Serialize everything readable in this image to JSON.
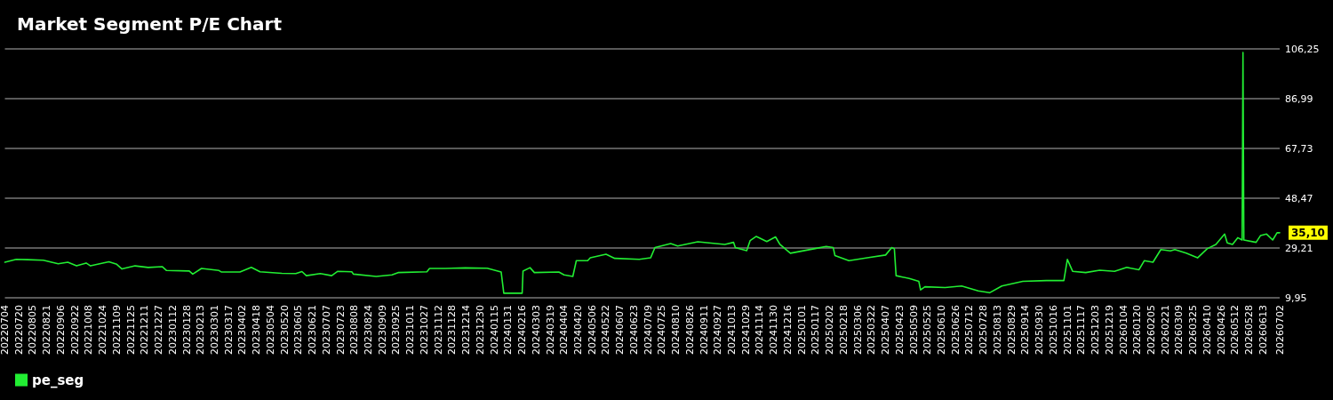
{
  "chart_data": {
    "type": "line",
    "title": "Market Segment P/E Chart",
    "x": [
      "2022-07-04",
      "2022-07-17",
      "2022-07-30",
      "2022-08-17",
      "2022-09-03",
      "2022-09-14",
      "2022-09-24",
      "2022-10-05",
      "2022-10-10",
      "2022-10-31",
      "2022-11-09",
      "2022-11-15",
      "2022-11-30",
      "2022-12-15",
      "2022-12-31",
      "2023-01-05",
      "2023-01-31",
      "2023-02-04",
      "2023-02-14",
      "2023-03-06",
      "2023-03-09",
      "2023-03-30",
      "2023-04-12",
      "2023-04-22",
      "2023-05-17",
      "2023-06-02",
      "2023-06-09",
      "2023-06-14",
      "2023-06-30",
      "2023-07-13",
      "2023-07-20",
      "2023-08-05",
      "2023-08-07",
      "2023-09-02",
      "2023-09-20",
      "2023-09-27",
      "2023-10-30",
      "2023-11-02",
      "2023-11-20",
      "2023-12-13",
      "2024-01-07",
      "2024-01-23",
      "2024-01-26",
      "2024-02-16",
      "2024-02-17",
      "2024-02-25",
      "2024-03-01",
      "2024-03-29",
      "2024-04-04",
      "2024-04-14",
      "2024-04-18",
      "2024-05-01",
      "2024-05-04",
      "2024-05-22",
      "2024-06-01",
      "2024-06-29",
      "2024-07-12",
      "2024-07-17",
      "2024-08-04",
      "2024-08-12",
      "2024-09-04",
      "2024-10-05",
      "2024-10-15",
      "2024-10-17",
      "2024-10-30",
      "2024-11-03",
      "2024-11-10",
      "2024-11-22",
      "2024-12-02",
      "2024-12-07",
      "2024-12-19",
      "2025-01-15",
      "2025-01-29",
      "2025-02-06",
      "2025-02-08",
      "2025-02-24",
      "2025-03-17",
      "2025-04-07",
      "2025-04-14",
      "2025-04-17",
      "2025-04-19",
      "2025-05-04",
      "2025-05-15",
      "2025-05-17",
      "2025-05-22",
      "2025-06-14",
      "2025-07-03",
      "2025-07-22",
      "2025-08-04",
      "2025-08-18",
      "2025-09-11",
      "2025-10-08",
      "2025-10-28",
      "2025-11-01",
      "2025-11-07",
      "2025-11-22",
      "2025-12-08",
      "2025-12-25",
      "2026-01-08",
      "2026-01-22",
      "2026-01-28",
      "2026-02-07",
      "2026-02-16",
      "2026-02-27",
      "2026-03-04",
      "2026-03-17",
      "2026-03-30",
      "2026-04-10",
      "2026-04-20",
      "2026-04-30",
      "2026-05-03",
      "2026-05-09",
      "2026-05-15",
      "2026-05-20",
      "2026-05-21",
      "2026-05-22",
      "2026-06-05",
      "2026-06-10",
      "2026-06-17",
      "2026-06-24",
      "2026-06-29",
      "2026-07-02"
    ],
    "series": [
      {
        "name": "pe_seg",
        "color": "#22ee33",
        "values": [
          23.7,
          24.8,
          24.7,
          24.5,
          23.1,
          23.7,
          22.3,
          23.4,
          22.3,
          23.9,
          22.9,
          21.1,
          22.3,
          21.7,
          22.0,
          20.5,
          20.3,
          19.1,
          21.3,
          20.5,
          19.9,
          19.9,
          21.7,
          20.0,
          19.4,
          19.3,
          20.1,
          18.5,
          19.3,
          18.5,
          20.2,
          20.0,
          19.1,
          18.2,
          18.8,
          19.7,
          20.0,
          21.3,
          21.3,
          21.5,
          21.4,
          19.9,
          11.7,
          11.7,
          20.3,
          21.6,
          19.7,
          19.9,
          18.8,
          18.2,
          24.3,
          24.3,
          25.4,
          26.8,
          25.2,
          24.8,
          25.4,
          29.4,
          30.9,
          30.0,
          31.6,
          30.6,
          31.4,
          29.4,
          28.2,
          32.1,
          33.7,
          31.7,
          33.5,
          30.6,
          27.2,
          28.9,
          29.8,
          29.4,
          26.3,
          24.3,
          25.4,
          26.5,
          29.4,
          28.9,
          18.5,
          17.4,
          16.3,
          13.0,
          14.2,
          13.9,
          14.5,
          12.6,
          11.9,
          14.5,
          16.3,
          16.6,
          16.6,
          24.8,
          20.2,
          19.7,
          20.6,
          20.2,
          21.7,
          20.8,
          24.3,
          23.7,
          28.6,
          28.1,
          28.6,
          27.2,
          25.4,
          28.9,
          30.6,
          34.6,
          31.2,
          30.6,
          33.2,
          32.3,
          104.9,
          32.3,
          31.4,
          34.0,
          34.6,
          32.3,
          35.1,
          35.1
        ]
      }
    ],
    "annotations": [
      {
        "text": "35,10",
        "x": "2026-07-02",
        "y": 35.1
      }
    ],
    "ylim": [
      9.95,
      106.25
    ],
    "yticks": [
      {
        "value": 9.95,
        "label": "9,95"
      },
      {
        "value": 29.21,
        "label": "29,21"
      },
      {
        "value": 48.47,
        "label": "48,47"
      },
      {
        "value": 67.73,
        "label": "67,73"
      },
      {
        "value": 86.99,
        "label": "86,99"
      },
      {
        "value": 106.25,
        "label": "106,25"
      }
    ],
    "xlim": [
      "2022-07-04",
      "2026-07-02"
    ],
    "xticks": [
      {
        "value": "2022-07-04",
        "label": "20220704"
      },
      {
        "value": "2022-07-20",
        "label": "20220720"
      },
      {
        "value": "2022-08-05",
        "label": "20220805"
      },
      {
        "value": "2022-08-21",
        "label": "20220821"
      },
      {
        "value": "2022-09-06",
        "label": "20220906"
      },
      {
        "value": "2022-09-22",
        "label": "20220922"
      },
      {
        "value": "2022-10-08",
        "label": "20221008"
      },
      {
        "value": "2022-10-24",
        "label": "20221024"
      },
      {
        "value": "2022-11-09",
        "label": "20221109"
      },
      {
        "value": "2022-11-25",
        "label": "20221125"
      },
      {
        "value": "2022-12-11",
        "label": "20221211"
      },
      {
        "value": "2022-12-27",
        "label": "20221227"
      },
      {
        "value": "2023-01-12",
        "label": "20230112"
      },
      {
        "value": "2023-01-28",
        "label": "20230128"
      },
      {
        "value": "2023-02-13",
        "label": "20230213"
      },
      {
        "value": "2023-03-01",
        "label": "20230301"
      },
      {
        "value": "2023-03-17",
        "label": "20230317"
      },
      {
        "value": "2023-04-02",
        "label": "20230402"
      },
      {
        "value": "2023-04-18",
        "label": "20230418"
      },
      {
        "value": "2023-05-04",
        "label": "20230504"
      },
      {
        "value": "2023-05-20",
        "label": "20230520"
      },
      {
        "value": "2023-06-05",
        "label": "20230605"
      },
      {
        "value": "2023-06-21",
        "label": "20230621"
      },
      {
        "value": "2023-07-07",
        "label": "20230707"
      },
      {
        "value": "2023-07-23",
        "label": "20230723"
      },
      {
        "value": "2023-08-08",
        "label": "20230808"
      },
      {
        "value": "2023-08-24",
        "label": "20230824"
      },
      {
        "value": "2023-09-09",
        "label": "20230909"
      },
      {
        "value": "2023-09-25",
        "label": "20230925"
      },
      {
        "value": "2023-10-11",
        "label": "20231011"
      },
      {
        "value": "2023-10-27",
        "label": "20231027"
      },
      {
        "value": "2023-11-12",
        "label": "20231112"
      },
      {
        "value": "2023-11-28",
        "label": "20231128"
      },
      {
        "value": "2023-12-14",
        "label": "20231214"
      },
      {
        "value": "2023-12-30",
        "label": "20231230"
      },
      {
        "value": "2024-01-15",
        "label": "20240115"
      },
      {
        "value": "2024-01-31",
        "label": "20240131"
      },
      {
        "value": "2024-02-16",
        "label": "20240216"
      },
      {
        "value": "2024-03-03",
        "label": "20240303"
      },
      {
        "value": "2024-03-19",
        "label": "20240319"
      },
      {
        "value": "2024-04-04",
        "label": "20240404"
      },
      {
        "value": "2024-04-20",
        "label": "20240420"
      },
      {
        "value": "2024-05-06",
        "label": "20240506"
      },
      {
        "value": "2024-05-22",
        "label": "20240522"
      },
      {
        "value": "2024-06-07",
        "label": "20240607"
      },
      {
        "value": "2024-06-23",
        "label": "20240623"
      },
      {
        "value": "2024-07-09",
        "label": "20240709"
      },
      {
        "value": "2024-07-25",
        "label": "20240725"
      },
      {
        "value": "2024-08-10",
        "label": "20240810"
      },
      {
        "value": "2024-08-26",
        "label": "20240826"
      },
      {
        "value": "2024-09-11",
        "label": "20240911"
      },
      {
        "value": "2024-09-27",
        "label": "20240927"
      },
      {
        "value": "2024-10-13",
        "label": "20241013"
      },
      {
        "value": "2024-10-29",
        "label": "20241029"
      },
      {
        "value": "2024-11-14",
        "label": "20241114"
      },
      {
        "value": "2024-11-30",
        "label": "20241130"
      },
      {
        "value": "2024-12-16",
        "label": "20241216"
      },
      {
        "value": "2025-01-01",
        "label": "20250101"
      },
      {
        "value": "2025-01-17",
        "label": "20250117"
      },
      {
        "value": "2025-02-02",
        "label": "20250202"
      },
      {
        "value": "2025-02-18",
        "label": "20250218"
      },
      {
        "value": "2025-03-06",
        "label": "20250306"
      },
      {
        "value": "2025-03-22",
        "label": "20250322"
      },
      {
        "value": "2025-04-07",
        "label": "20250407"
      },
      {
        "value": "2025-04-23",
        "label": "20250423"
      },
      {
        "value": "2025-05-09",
        "label": "20250509"
      },
      {
        "value": "2025-05-25",
        "label": "20250525"
      },
      {
        "value": "2025-06-10",
        "label": "20250610"
      },
      {
        "value": "2025-06-26",
        "label": "20250626"
      },
      {
        "value": "2025-07-12",
        "label": "20250712"
      },
      {
        "value": "2025-07-28",
        "label": "20250728"
      },
      {
        "value": "2025-08-13",
        "label": "20250813"
      },
      {
        "value": "2025-08-29",
        "label": "20250829"
      },
      {
        "value": "2025-09-14",
        "label": "20250914"
      },
      {
        "value": "2025-09-30",
        "label": "20250930"
      },
      {
        "value": "2025-10-16",
        "label": "20251016"
      },
      {
        "value": "2025-11-01",
        "label": "20251101"
      },
      {
        "value": "2025-11-17",
        "label": "20251117"
      },
      {
        "value": "2025-12-03",
        "label": "20251203"
      },
      {
        "value": "2025-12-19",
        "label": "20251219"
      },
      {
        "value": "2026-01-04",
        "label": "20260104"
      },
      {
        "value": "2026-01-20",
        "label": "20260120"
      },
      {
        "value": "2026-02-05",
        "label": "20260205"
      },
      {
        "value": "2026-02-21",
        "label": "20260221"
      },
      {
        "value": "2026-03-09",
        "label": "20260309"
      },
      {
        "value": "2026-03-25",
        "label": "20260325"
      },
      {
        "value": "2026-04-10",
        "label": "20260410"
      },
      {
        "value": "2026-04-26",
        "label": "20260426"
      },
      {
        "value": "2026-05-12",
        "label": "20260512"
      },
      {
        "value": "2026-05-28",
        "label": "20260528"
      },
      {
        "value": "2026-06-13",
        "label": "20260613"
      },
      {
        "value": "2026-07-02",
        "label": "20260702"
      }
    ],
    "grid": "y",
    "legend": "bottom left",
    "marker": "none",
    "line_style": "solid"
  }
}
